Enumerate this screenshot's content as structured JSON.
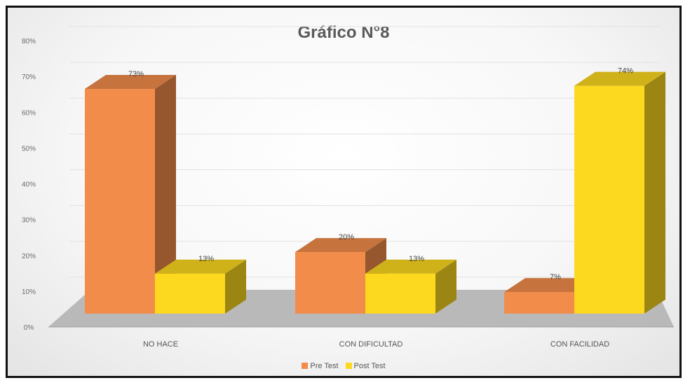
{
  "chart_data": {
    "type": "bar",
    "title": "Gráfico N°8",
    "categories": [
      "NO HACE",
      "CON DIFICULTAD",
      "CON FACILIDAD"
    ],
    "series": [
      {
        "name": "Pre Test",
        "values": [
          73,
          20,
          7
        ],
        "color": "#f28c4a"
      },
      {
        "name": "Post Test",
        "values": [
          13,
          13,
          74
        ],
        "color": "#fcd81f"
      }
    ],
    "data_labels": [
      [
        "73%",
        "20%",
        "7%"
      ],
      [
        "13%",
        "13%",
        "74%"
      ]
    ],
    "ylim": [
      0,
      80
    ],
    "yticks": [
      "0%",
      "10%",
      "20%",
      "30%",
      "40%",
      "50%",
      "60%",
      "70%",
      "80%"
    ],
    "xlabel": "",
    "ylabel": "",
    "grid": true,
    "style": "3d-column",
    "legend_position": "bottom"
  }
}
